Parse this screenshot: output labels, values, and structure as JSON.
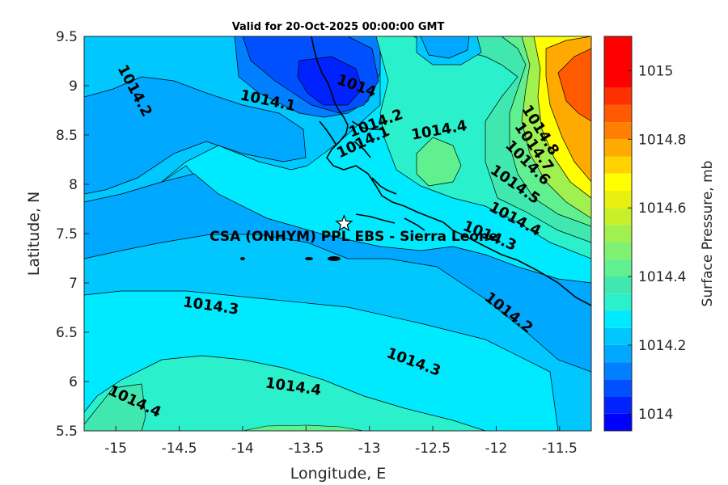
{
  "title": "Valid for 20-Oct-2025 00:00:00 GMT",
  "xlabel": "Longitude, E",
  "ylabel": "Latitude, N",
  "x_ticks": [
    "-15",
    "-14.5",
    "-14",
    "-13.5",
    "-13",
    "-12.5",
    "-12",
    "-11.5"
  ],
  "y_ticks": [
    "9.5",
    "9",
    "8.5",
    "8",
    "7.5",
    "7",
    "6.5",
    "6",
    "5.5"
  ],
  "site": {
    "name": "CSA (ONHYM) PPL EBS  - Sierra Leone",
    "lon": -13.2,
    "lat": 7.6
  },
  "contour_labels": [
    {
      "text": "1014.2",
      "lon": -14.85,
      "lat": 8.95,
      "angle": 62
    },
    {
      "text": "1014.1",
      "lon": -13.8,
      "lat": 8.85,
      "angle": 12
    },
    {
      "text": "1014",
      "lon": -13.1,
      "lat": 9.0,
      "angle": 20
    },
    {
      "text": "1014.2",
      "lon": -12.95,
      "lat": 8.62,
      "angle": -20
    },
    {
      "text": "1014.1",
      "lon": -13.05,
      "lat": 8.43,
      "angle": -25
    },
    {
      "text": "1014.4",
      "lon": -12.45,
      "lat": 8.55,
      "angle": -10
    },
    {
      "text": "1014.8",
      "lon": -11.65,
      "lat": 8.55,
      "angle": 58
    },
    {
      "text": "1014.7",
      "lon": -11.7,
      "lat": 8.38,
      "angle": 55
    },
    {
      "text": "1014.6",
      "lon": -11.75,
      "lat": 8.22,
      "angle": 45
    },
    {
      "text": "1014.5",
      "lon": -11.85,
      "lat": 8.0,
      "angle": 35
    },
    {
      "text": "1014.4",
      "lon": -11.85,
      "lat": 7.65,
      "angle": 28
    },
    {
      "text": "1014.3",
      "lon": -12.05,
      "lat": 7.48,
      "angle": 22
    },
    {
      "text": "1014.3",
      "lon": -14.25,
      "lat": 6.77,
      "angle": 8
    },
    {
      "text": "1014.2",
      "lon": -11.9,
      "lat": 6.7,
      "angle": 38
    },
    {
      "text": "1014.3",
      "lon": -12.65,
      "lat": 6.2,
      "angle": 20
    },
    {
      "text": "1014.4",
      "lon": -13.6,
      "lat": 5.95,
      "angle": 8
    },
    {
      "text": "1014.4",
      "lon": -14.85,
      "lat": 5.8,
      "angle": 25
    }
  ],
  "colorbar": {
    "title": "Surface Pressure, mb",
    "labels": [
      "1015",
      "1014.8",
      "1014.6",
      "1014.4",
      "1014.2",
      "1014"
    ],
    "min": 1013.95,
    "max": 1015.1,
    "levels": [
      {
        "from": 1013.95,
        "to": 1014.0,
        "color": "#0000ff"
      },
      {
        "from": 1014.0,
        "to": 1014.05,
        "color": "#0022ff"
      },
      {
        "from": 1014.05,
        "to": 1014.1,
        "color": "#0050ff"
      },
      {
        "from": 1014.1,
        "to": 1014.15,
        "color": "#0080ff"
      },
      {
        "from": 1014.15,
        "to": 1014.2,
        "color": "#00a8ff"
      },
      {
        "from": 1014.2,
        "to": 1014.25,
        "color": "#00c8ff"
      },
      {
        "from": 1014.25,
        "to": 1014.3,
        "color": "#00eaff"
      },
      {
        "from": 1014.3,
        "to": 1014.35,
        "color": "#2af0cc"
      },
      {
        "from": 1014.35,
        "to": 1014.4,
        "color": "#40e8b0"
      },
      {
        "from": 1014.4,
        "to": 1014.45,
        "color": "#60f090"
      },
      {
        "from": 1014.45,
        "to": 1014.5,
        "color": "#80f070"
      },
      {
        "from": 1014.5,
        "to": 1014.55,
        "color": "#a0f050"
      },
      {
        "from": 1014.55,
        "to": 1014.6,
        "color": "#c8f028"
      },
      {
        "from": 1014.6,
        "to": 1014.65,
        "color": "#e8f010"
      },
      {
        "from": 1014.65,
        "to": 1014.7,
        "color": "#ffff00"
      },
      {
        "from": 1014.7,
        "to": 1014.75,
        "color": "#ffd200"
      },
      {
        "from": 1014.75,
        "to": 1014.8,
        "color": "#ffaa00"
      },
      {
        "from": 1014.8,
        "to": 1014.85,
        "color": "#ff8000"
      },
      {
        "from": 1014.85,
        "to": 1014.9,
        "color": "#ff5a00"
      },
      {
        "from": 1014.9,
        "to": 1014.95,
        "color": "#ff3000"
      },
      {
        "from": 1014.95,
        "to": 1015.1,
        "color": "#ff0000"
      }
    ]
  }
}
